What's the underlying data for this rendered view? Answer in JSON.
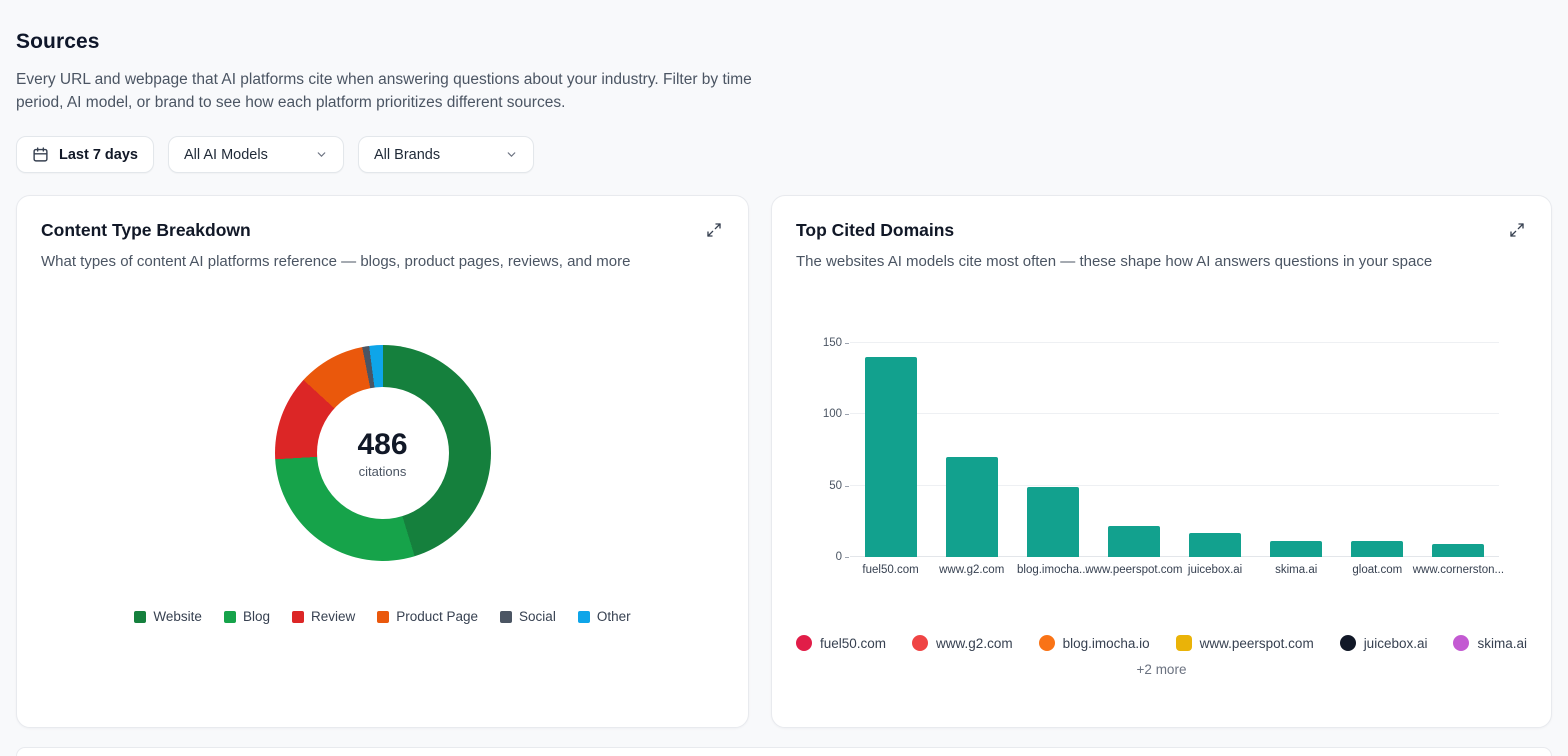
{
  "page": {
    "title": "Sources",
    "description": "Every URL and webpage that AI platforms cite when answering questions about your industry. Filter by time period, AI model, or brand to see how each platform prioritizes different sources."
  },
  "filters": {
    "date_range": "Last 7 days",
    "model_select": "All AI Models",
    "brand_select": "All Brands"
  },
  "cards": {
    "content_type": {
      "title": "Content Type Breakdown",
      "subtitle": "What types of content AI platforms reference — blogs, product pages, reviews, and more",
      "center_value": "486",
      "center_label": "citations"
    },
    "top_domains": {
      "title": "Top Cited Domains",
      "subtitle": "The websites AI models cite most often — these shape how AI answers questions in your space",
      "more_label": "+2 more"
    }
  },
  "chart_data": [
    {
      "type": "pie",
      "title": "Content Type Breakdown",
      "total": 486,
      "center_label": "citations",
      "segments": [
        {
          "label": "Website",
          "value": 220,
          "color": "#15803d"
        },
        {
          "label": "Blog",
          "value": 140,
          "color": "#16a34a"
        },
        {
          "label": "Review",
          "value": 62,
          "color": "#dc2626"
        },
        {
          "label": "Product Page",
          "value": 49,
          "color": "#ea580c"
        },
        {
          "label": "Social",
          "value": 5,
          "color": "#4b5563"
        },
        {
          "label": "Other",
          "value": 10,
          "color": "#0ea5e9"
        }
      ]
    },
    {
      "type": "bar",
      "title": "Top Cited Domains",
      "categories": [
        "fuel50.com",
        "www.g2.com",
        "blog.imocha...",
        "www.peerspot.com",
        "juicebox.ai",
        "skima.ai",
        "gloat.com",
        "www.cornerston..."
      ],
      "values": [
        140,
        70,
        49,
        22,
        17,
        11,
        11,
        9
      ],
      "bar_color": "#12a18e",
      "ylabel": "",
      "xlabel": "",
      "ylim": [
        0,
        150
      ],
      "yticks": [
        0,
        50,
        100,
        150
      ],
      "grid": true,
      "legend": "none"
    }
  ],
  "domain_chips": [
    {
      "label": "fuel50.com",
      "color": "#e11d48",
      "shape": "circle"
    },
    {
      "label": "www.g2.com",
      "color": "#ef4444",
      "shape": "circle"
    },
    {
      "label": "blog.imocha.io",
      "color": "#f97316",
      "shape": "circle"
    },
    {
      "label": "www.peerspot.com",
      "color": "#eab308",
      "shape": "square"
    },
    {
      "label": "juicebox.ai",
      "color": "#111827",
      "shape": "circle"
    },
    {
      "label": "skima.ai",
      "color": "#c35ad2",
      "shape": "circle"
    }
  ]
}
